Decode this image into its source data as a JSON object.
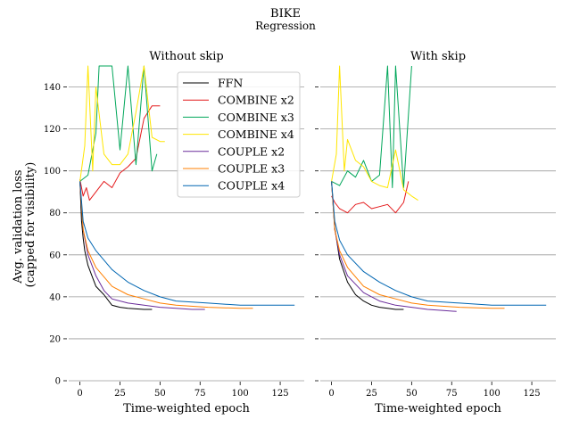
{
  "figure": {
    "title": "BIKE",
    "subtitle": "Regression"
  },
  "chart_data": [
    {
      "type": "line",
      "title": "Without skip",
      "xlabel": "Time-weighted epoch",
      "ylabel": "Avg. validation loss\n(capped for visibility)",
      "xlim": [
        -7,
        140
      ],
      "ylim": [
        0,
        150
      ],
      "xticks": [
        0,
        25,
        50,
        75,
        100,
        125
      ],
      "yticks": [
        0,
        20,
        40,
        60,
        80,
        100,
        120,
        140
      ],
      "ygrid": true,
      "legend": "top-right",
      "series": [
        {
          "name": "FFN",
          "color": "#000000",
          "x": [
            0,
            1,
            2,
            3,
            5,
            8,
            10,
            15,
            20,
            25,
            30,
            40,
            45
          ],
          "y": [
            95,
            76,
            68,
            62,
            55,
            49,
            45,
            41,
            36,
            35,
            34.5,
            34,
            34
          ]
        },
        {
          "name": "COMBINE x2",
          "color": "#e41a1c",
          "x": [
            0,
            2,
            4,
            6,
            10,
            15,
            20,
            25,
            30,
            35,
            40,
            45,
            50
          ],
          "y": [
            96,
            88,
            92,
            86,
            90,
            95,
            92,
            99,
            102,
            106,
            125,
            131,
            131
          ]
        },
        {
          "name": "COMBINE x3",
          "color": "#00a65a",
          "x": [
            0,
            5,
            10,
            12,
            15,
            20,
            25,
            30,
            35,
            40,
            45,
            48
          ],
          "y": [
            95,
            98,
            118,
            150,
            150,
            150,
            110,
            150,
            103,
            150,
            100,
            108
          ]
        },
        {
          "name": "COMBINE x4",
          "color": "#ffe600",
          "x": [
            0,
            3,
            5,
            8,
            10,
            15,
            20,
            25,
            30,
            35,
            40,
            45,
            50,
            53
          ],
          "y": [
            95,
            112,
            150,
            100,
            140,
            108,
            103,
            103,
            108,
            128,
            150,
            116,
            114,
            114
          ]
        },
        {
          "name": "COUPLE x2",
          "color": "#6a2c9a",
          "x": [
            0,
            2,
            5,
            10,
            15,
            20,
            30,
            40,
            50,
            60,
            70,
            78
          ],
          "y": [
            95,
            72,
            60,
            50,
            43,
            39,
            37,
            36,
            35,
            34.5,
            34,
            34
          ]
        },
        {
          "name": "COUPLE x3",
          "color": "#ff7f00",
          "x": [
            0,
            2,
            5,
            10,
            20,
            30,
            40,
            50,
            60,
            80,
            100,
            108
          ],
          "y": [
            95,
            72,
            62,
            54,
            45,
            41,
            39,
            37,
            36,
            35,
            34.5,
            34.5
          ]
        },
        {
          "name": "COUPLE x4",
          "color": "#0066b2",
          "x": [
            0,
            2,
            5,
            10,
            20,
            30,
            40,
            50,
            60,
            80,
            100,
            120,
            134
          ],
          "y": [
            95,
            76,
            68,
            62,
            53,
            47,
            43,
            40,
            38,
            37,
            36,
            36,
            36
          ]
        }
      ]
    },
    {
      "type": "line",
      "title": "With skip",
      "xlabel": "Time-weighted epoch",
      "xlim": [
        -7,
        140
      ],
      "ylim": [
        0,
        150
      ],
      "xticks": [
        0,
        25,
        50,
        75,
        100,
        125
      ],
      "ygrid": true,
      "series": [
        {
          "name": "FFN",
          "color": "#000000",
          "x": [
            0,
            2,
            5,
            10,
            15,
            20,
            25,
            30,
            35,
            40,
            45
          ],
          "y": [
            95,
            73,
            58,
            47,
            41,
            38,
            36,
            35,
            34.5,
            34,
            34
          ]
        },
        {
          "name": "COMBINE x2",
          "color": "#e41a1c",
          "x": [
            0,
            2,
            5,
            10,
            15,
            20,
            25,
            30,
            35,
            40,
            45,
            48
          ],
          "y": [
            88,
            85,
            82,
            80,
            84,
            85,
            82,
            83,
            84,
            80,
            85,
            95
          ]
        },
        {
          "name": "COMBINE x3",
          "color": "#00a65a",
          "x": [
            0,
            5,
            10,
            15,
            20,
            25,
            30,
            35,
            38,
            40,
            45,
            50
          ],
          "y": [
            95,
            93,
            100,
            97,
            105,
            95,
            98,
            150,
            92,
            150,
            92,
            150
          ]
        },
        {
          "name": "COMBINE x4",
          "color": "#ffe600",
          "x": [
            0,
            3,
            5,
            8,
            10,
            15,
            20,
            25,
            30,
            35,
            40,
            45,
            50,
            54
          ],
          "y": [
            95,
            108,
            150,
            100,
            115,
            105,
            102,
            95,
            93,
            92,
            110,
            91,
            88,
            86
          ]
        },
        {
          "name": "COUPLE x2",
          "color": "#6a2c9a",
          "x": [
            0,
            2,
            5,
            10,
            20,
            30,
            40,
            50,
            60,
            70,
            78
          ],
          "y": [
            95,
            72,
            60,
            50,
            42,
            38,
            36,
            35,
            34,
            33.5,
            33
          ]
        },
        {
          "name": "COUPLE x3",
          "color": "#ff7f00",
          "x": [
            0,
            2,
            5,
            10,
            20,
            30,
            40,
            50,
            60,
            80,
            100,
            108
          ],
          "y": [
            95,
            72,
            62,
            54,
            45,
            41,
            39,
            37,
            36,
            35,
            34.5,
            34.5
          ]
        },
        {
          "name": "COUPLE x4",
          "color": "#0066b2",
          "x": [
            0,
            2,
            5,
            10,
            20,
            30,
            40,
            50,
            60,
            80,
            100,
            120,
            134
          ],
          "y": [
            95,
            76,
            67,
            60,
            52,
            47,
            43,
            40,
            38,
            37,
            36,
            36,
            36
          ]
        }
      ]
    }
  ]
}
